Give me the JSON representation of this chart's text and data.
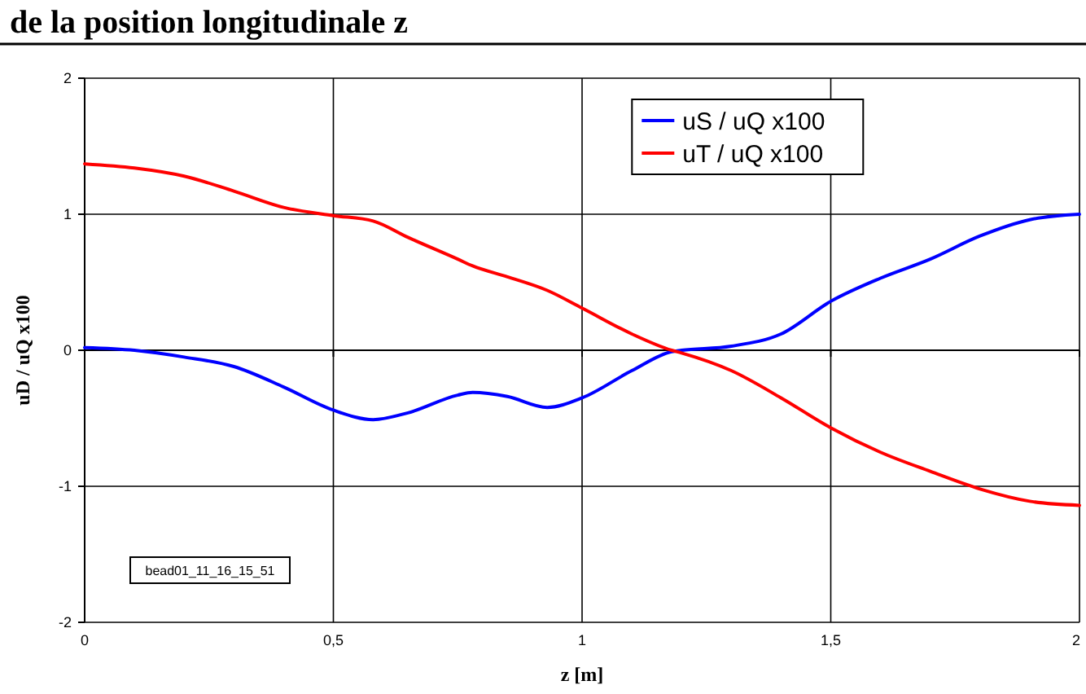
{
  "chart_data": {
    "type": "line",
    "title": "de la position longitudinale z",
    "xlabel": "z [m]",
    "ylabel": "uD / uQ x100",
    "x": [
      0,
      0.1,
      0.2,
      0.3,
      0.4,
      0.5,
      0.58,
      0.65,
      0.75,
      0.78,
      0.85,
      0.93,
      1.0,
      1.1,
      1.18,
      1.2,
      1.3,
      1.4,
      1.5,
      1.6,
      1.7,
      1.8,
      1.9,
      2.0
    ],
    "series": [
      {
        "name": "uS / uQ x100",
        "color": "#0000ff",
        "values": [
          0.02,
          0.0,
          -0.05,
          -0.12,
          -0.27,
          -0.44,
          -0.51,
          -0.46,
          -0.33,
          -0.31,
          -0.34,
          -0.42,
          -0.35,
          -0.15,
          -0.01,
          0.0,
          0.03,
          0.12,
          0.36,
          0.53,
          0.67,
          0.84,
          0.96,
          1.0
        ]
      },
      {
        "name": "uT / uQ x100",
        "color": "#ff0000",
        "values": [
          1.37,
          1.34,
          1.28,
          1.17,
          1.05,
          0.99,
          0.95,
          0.83,
          0.67,
          0.62,
          0.54,
          0.44,
          0.31,
          0.12,
          0.0,
          -0.02,
          -0.15,
          -0.35,
          -0.57,
          -0.75,
          -0.89,
          -1.02,
          -1.11,
          -1.14
        ]
      }
    ],
    "xlim": [
      0,
      2
    ],
    "xticks": [
      0,
      {
        "value": 0.5,
        "label": "0,5"
      },
      1,
      {
        "value": 1.5,
        "label": "1,5"
      },
      2
    ],
    "ylim": [
      -2,
      2
    ],
    "yticks": [
      -2,
      -1,
      0,
      1,
      2
    ],
    "grid": true,
    "legend": "top",
    "marker": "none",
    "line_style": "solid",
    "annotations": [
      "bead01_11_16_15_51"
    ]
  }
}
